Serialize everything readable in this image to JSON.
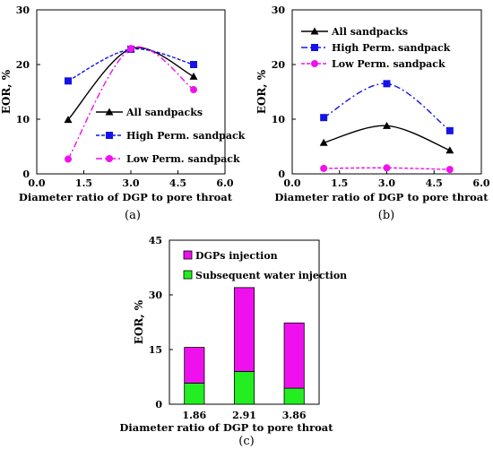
{
  "chart_data": [
    {
      "panel": "(a)",
      "type": "line",
      "xlabel": "Diameter ratio  of DGP to pore throat",
      "ylabel": "EOR, %",
      "xlim": [
        0.0,
        6.0
      ],
      "ylim": [
        0,
        30
      ],
      "xticks": [
        "0.0",
        "1.5",
        "3.0",
        "4.5",
        "6.0"
      ],
      "yticks": [
        "0",
        "10",
        "20",
        "30"
      ],
      "legend": "bottom-right",
      "series": [
        {
          "name": "All sandpacks",
          "x": [
            1,
            3,
            5
          ],
          "y": [
            9.9,
            22.9,
            17.8
          ],
          "color": "#000000",
          "marker": "triangle",
          "dash": "solid"
        },
        {
          "name": "High Perm. sandpack",
          "x": [
            1,
            3,
            5
          ],
          "y": [
            17.0,
            22.8,
            20.0
          ],
          "color": "#1414e6",
          "marker": "square",
          "dash": "dash"
        },
        {
          "name": "Low Perm. sandpack",
          "x": [
            1,
            3,
            5
          ],
          "y": [
            2.7,
            22.9,
            15.4
          ],
          "color": "#ee11ee",
          "marker": "circle",
          "dash": "dashdot"
        }
      ]
    },
    {
      "panel": "(b)",
      "type": "line",
      "xlabel": "Diameter ratio  of DGP to pore  throat",
      "ylabel": "EOR, %",
      "xlim": [
        0.0,
        6.0
      ],
      "ylim": [
        0,
        30
      ],
      "xticks": [
        "0.0",
        "1.5",
        "3.0",
        "4.5",
        "6.0"
      ],
      "yticks": [
        "0",
        "10",
        "20",
        "30"
      ],
      "legend": "top-left",
      "series": [
        {
          "name": "All sandpacks",
          "x": [
            1,
            3,
            5
          ],
          "y": [
            5.7,
            8.8,
            4.3
          ],
          "color": "#000000",
          "marker": "triangle",
          "dash": "solid"
        },
        {
          "name": "High Perm. sandpack",
          "x": [
            1,
            3,
            5
          ],
          "y": [
            10.3,
            16.5,
            7.9
          ],
          "color": "#1414e6",
          "marker": "square",
          "dash": "dashdot"
        },
        {
          "name": "Low Perm. sandpack",
          "x": [
            1,
            3,
            5
          ],
          "y": [
            1.0,
            1.1,
            0.8
          ],
          "color": "#ee11ee",
          "marker": "circle",
          "dash": "dash"
        }
      ]
    },
    {
      "panel": "(c)",
      "type": "bar",
      "stacked": true,
      "xlabel": "Diameter ratio  of DGP to pore throat",
      "ylabel": "EOR, %",
      "ylim": [
        0,
        45
      ],
      "yticks": [
        "0",
        "15",
        "30",
        "45"
      ],
      "categories": [
        "1.86",
        "2.91",
        "3.86"
      ],
      "legend": "top-left",
      "series": [
        {
          "name": "Subsequent water injection",
          "values": [
            5.8,
            9.0,
            4.4
          ],
          "color": "#22ee22"
        },
        {
          "name": "DGPs injection",
          "values": [
            9.8,
            23.0,
            17.9
          ],
          "color": "#ee11ee"
        }
      ]
    }
  ]
}
